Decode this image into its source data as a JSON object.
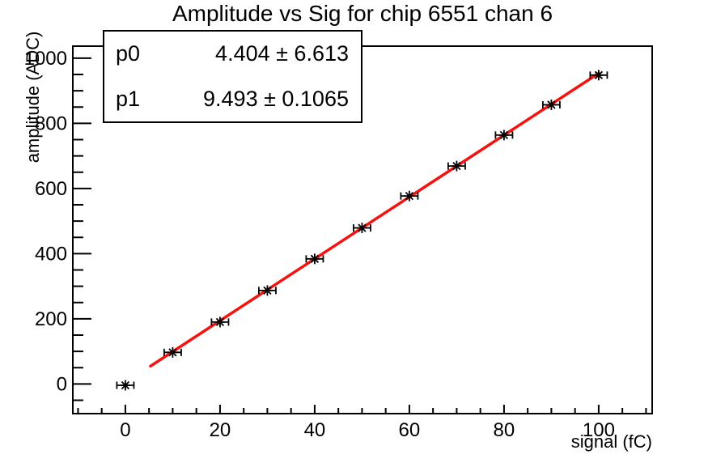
{
  "title": "Amplitude vs Sig for chip 6551 chan 6",
  "stats_box": {
    "rows": [
      {
        "param": "p0",
        "value": "4.404 ± 6.613"
      },
      {
        "param": "p1",
        "value": "9.493 ± 0.1065"
      }
    ]
  },
  "chart_data": {
    "type": "scatter",
    "title": "Amplitude vs Sig for chip 6551 chan 6",
    "xlabel": "signal (fC)",
    "ylabel": "amplitude (ADC)",
    "x": [
      0,
      10,
      20,
      30,
      40,
      50,
      60,
      70,
      80,
      90,
      100
    ],
    "y": [
      -4,
      97,
      190,
      287,
      384,
      479,
      577,
      669,
      764,
      857,
      948
    ],
    "x_error": 1.8,
    "marker": "asterisk",
    "grid": false,
    "legend": "none",
    "fit": {
      "label_p0": "p0",
      "p0": 4.404,
      "p0_err": 6.613,
      "label_p1": "p1",
      "p1": 9.493,
      "p1_err": 0.1065,
      "range": [
        5.3,
        100
      ]
    },
    "xlim": [
      -11.1,
      111.3
    ],
    "ylim": [
      -91,
      1037
    ],
    "x_major_ticks": [
      0,
      20,
      40,
      60,
      80,
      100
    ],
    "y_major_ticks": [
      0,
      200,
      400,
      600,
      800,
      1000
    ],
    "x_major_step": 20,
    "x_minor_step": 5,
    "y_major_step": 200,
    "y_minor_step": 50,
    "colors": {
      "marker": "#000000",
      "fit_line": "#f41310",
      "frame": "#000000",
      "background": "#ffffff"
    }
  }
}
